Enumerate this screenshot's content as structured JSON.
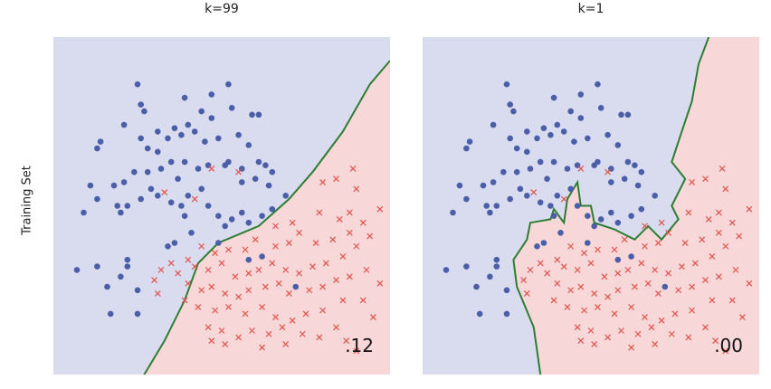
{
  "row_label": "Training Set",
  "colors": {
    "class_a_region": "#d9dcef",
    "class_b_region": "#f8d7d8",
    "boundary": "#2e7d32",
    "class_a_marker": "#4b5ea8",
    "class_b_marker": "#e0534b"
  },
  "chart_data": [
    {
      "type": "scatter",
      "title": "k=99",
      "error_label": ".12",
      "xlim": [
        0,
        1
      ],
      "ylim": [
        0,
        1
      ],
      "boundary": [
        [
          0.27,
          0
        ],
        [
          0.33,
          0.1
        ],
        [
          0.39,
          0.22
        ],
        [
          0.43,
          0.33
        ],
        [
          0.49,
          0.39
        ],
        [
          0.61,
          0.44
        ],
        [
          0.7,
          0.52
        ],
        [
          0.77,
          0.6
        ],
        [
          0.86,
          0.72
        ],
        [
          0.94,
          0.86
        ],
        [
          1.0,
          0.93
        ]
      ]
    },
    {
      "type": "scatter",
      "title": "k=1",
      "error_label": ".00",
      "xlim": [
        0,
        1
      ],
      "ylim": [
        0,
        1
      ],
      "boundary": [
        [
          0.35,
          0
        ],
        [
          0.33,
          0.14
        ],
        [
          0.28,
          0.26
        ],
        [
          0.27,
          0.34
        ],
        [
          0.31,
          0.4
        ],
        [
          0.32,
          0.45
        ],
        [
          0.38,
          0.46
        ],
        [
          0.39,
          0.49
        ],
        [
          0.42,
          0.45
        ],
        [
          0.43,
          0.52
        ],
        [
          0.46,
          0.57
        ],
        [
          0.47,
          0.5
        ],
        [
          0.5,
          0.5
        ],
        [
          0.51,
          0.45
        ],
        [
          0.57,
          0.43
        ],
        [
          0.63,
          0.4
        ],
        [
          0.67,
          0.44
        ],
        [
          0.71,
          0.4
        ],
        [
          0.76,
          0.46
        ],
        [
          0.74,
          0.5
        ],
        [
          0.78,
          0.58
        ],
        [
          0.74,
          0.63
        ],
        [
          0.77,
          0.72
        ],
        [
          0.8,
          0.81
        ],
        [
          0.82,
          0.92
        ],
        [
          0.85,
          1.0
        ]
      ]
    }
  ],
  "points": {
    "class_a": [
      [
        0.25,
        0.86
      ],
      [
        0.26,
        0.8
      ],
      [
        0.27,
        0.78
      ],
      [
        0.39,
        0.82
      ],
      [
        0.47,
        0.83
      ],
      [
        0.52,
        0.86
      ],
      [
        0.44,
        0.78
      ],
      [
        0.47,
        0.76
      ],
      [
        0.53,
        0.79
      ],
      [
        0.59,
        0.77
      ],
      [
        0.61,
        0.77
      ],
      [
        0.14,
        0.69
      ],
      [
        0.13,
        0.67
      ],
      [
        0.21,
        0.74
      ],
      [
        0.26,
        0.7
      ],
      [
        0.28,
        0.67
      ],
      [
        0.31,
        0.66
      ],
      [
        0.34,
        0.7
      ],
      [
        0.36,
        0.73
      ],
      [
        0.38,
        0.71
      ],
      [
        0.4,
        0.74
      ],
      [
        0.42,
        0.72
      ],
      [
        0.45,
        0.69
      ],
      [
        0.49,
        0.7
      ],
      [
        0.55,
        0.71
      ],
      [
        0.58,
        0.68
      ],
      [
        0.61,
        0.63
      ],
      [
        0.63,
        0.62
      ],
      [
        0.65,
        0.6
      ],
      [
        0.56,
        0.61
      ],
      [
        0.51,
        0.62
      ],
      [
        0.46,
        0.62
      ],
      [
        0.43,
        0.61
      ],
      [
        0.39,
        0.63
      ],
      [
        0.35,
        0.63
      ],
      [
        0.32,
        0.61
      ],
      [
        0.28,
        0.6
      ],
      [
        0.24,
        0.6
      ],
      [
        0.21,
        0.57
      ],
      [
        0.18,
        0.56
      ],
      [
        0.11,
        0.56
      ],
      [
        0.09,
        0.48
      ],
      [
        0.13,
        0.52
      ],
      [
        0.19,
        0.5
      ],
      [
        0.2,
        0.48
      ],
      [
        0.22,
        0.5
      ],
      [
        0.26,
        0.52
      ],
      [
        0.29,
        0.55
      ],
      [
        0.31,
        0.53
      ],
      [
        0.35,
        0.51
      ],
      [
        0.38,
        0.5
      ],
      [
        0.4,
        0.53
      ],
      [
        0.44,
        0.55
      ],
      [
        0.46,
        0.5
      ],
      [
        0.49,
        0.47
      ],
      [
        0.51,
        0.44
      ],
      [
        0.53,
        0.46
      ],
      [
        0.56,
        0.48
      ],
      [
        0.58,
        0.45
      ],
      [
        0.62,
        0.47
      ],
      [
        0.65,
        0.49
      ],
      [
        0.69,
        0.53
      ],
      [
        0.64,
        0.56
      ],
      [
        0.6,
        0.58
      ],
      [
        0.07,
        0.31
      ],
      [
        0.13,
        0.32
      ],
      [
        0.22,
        0.34
      ],
      [
        0.22,
        0.32
      ],
      [
        0.2,
        0.29
      ],
      [
        0.16,
        0.26
      ],
      [
        0.25,
        0.25
      ],
      [
        0.17,
        0.18
      ],
      [
        0.25,
        0.18
      ],
      [
        0.41,
        0.42
      ],
      [
        0.36,
        0.39
      ],
      [
        0.34,
        0.38
      ],
      [
        0.49,
        0.39
      ],
      [
        0.58,
        0.34
      ],
      [
        0.62,
        0.35
      ],
      [
        0.72,
        0.26
      ],
      [
        0.52,
        0.63
      ],
      [
        0.37,
        0.58
      ],
      [
        0.31,
        0.72
      ],
      [
        0.56,
        0.57
      ],
      [
        0.39,
        0.47
      ]
    ],
    "class_b": [
      [
        0.47,
        0.61
      ],
      [
        0.55,
        0.6
      ],
      [
        0.33,
        0.54
      ],
      [
        0.42,
        0.52
      ],
      [
        0.66,
        0.44
      ],
      [
        0.71,
        0.45
      ],
      [
        0.8,
        0.57
      ],
      [
        0.84,
        0.58
      ],
      [
        0.89,
        0.61
      ],
      [
        0.9,
        0.55
      ],
      [
        0.79,
        0.48
      ],
      [
        0.85,
        0.46
      ],
      [
        0.88,
        0.48
      ],
      [
        0.92,
        0.45
      ],
      [
        0.97,
        0.49
      ],
      [
        0.94,
        0.41
      ],
      [
        0.88,
        0.42
      ],
      [
        0.83,
        0.4
      ],
      [
        0.78,
        0.39
      ],
      [
        0.73,
        0.42
      ],
      [
        0.7,
        0.39
      ],
      [
        0.66,
        0.38
      ],
      [
        0.6,
        0.4
      ],
      [
        0.57,
        0.37
      ],
      [
        0.52,
        0.37
      ],
      [
        0.48,
        0.36
      ],
      [
        0.44,
        0.38
      ],
      [
        0.4,
        0.34
      ],
      [
        0.42,
        0.32
      ],
      [
        0.46,
        0.31
      ],
      [
        0.5,
        0.33
      ],
      [
        0.54,
        0.29
      ],
      [
        0.58,
        0.3
      ],
      [
        0.61,
        0.31
      ],
      [
        0.65,
        0.33
      ],
      [
        0.69,
        0.31
      ],
      [
        0.73,
        0.3
      ],
      [
        0.77,
        0.32
      ],
      [
        0.81,
        0.33
      ],
      [
        0.86,
        0.35
      ],
      [
        0.9,
        0.38
      ],
      [
        0.93,
        0.31
      ],
      [
        0.88,
        0.29
      ],
      [
        0.84,
        0.28
      ],
      [
        0.8,
        0.26
      ],
      [
        0.76,
        0.25
      ],
      [
        0.7,
        0.24
      ],
      [
        0.67,
        0.27
      ],
      [
        0.63,
        0.26
      ],
      [
        0.58,
        0.25
      ],
      [
        0.55,
        0.23
      ],
      [
        0.51,
        0.24
      ],
      [
        0.47,
        0.26
      ],
      [
        0.44,
        0.25
      ],
      [
        0.4,
        0.27
      ],
      [
        0.37,
        0.3
      ],
      [
        0.35,
        0.33
      ],
      [
        0.39,
        0.22
      ],
      [
        0.43,
        0.2
      ],
      [
        0.48,
        0.19
      ],
      [
        0.52,
        0.2
      ],
      [
        0.57,
        0.18
      ],
      [
        0.62,
        0.2
      ],
      [
        0.66,
        0.17
      ],
      [
        0.71,
        0.16
      ],
      [
        0.75,
        0.18
      ],
      [
        0.8,
        0.19
      ],
      [
        0.68,
        0.14
      ],
      [
        0.74,
        0.12
      ],
      [
        0.79,
        0.11
      ],
      [
        0.64,
        0.12
      ],
      [
        0.59,
        0.13
      ],
      [
        0.55,
        0.11
      ],
      [
        0.5,
        0.13
      ],
      [
        0.46,
        0.14
      ],
      [
        0.69,
        0.09
      ],
      [
        0.84,
        0.14
      ],
      [
        0.87,
        0.1
      ],
      [
        0.9,
        0.07
      ],
      [
        0.95,
        0.17
      ],
      [
        0.97,
        0.27
      ],
      [
        0.92,
        0.22
      ],
      [
        0.86,
        0.22
      ],
      [
        0.47,
        0.1
      ],
      [
        0.51,
        0.09
      ],
      [
        0.62,
        0.08
      ],
      [
        0.32,
        0.31
      ],
      [
        0.3,
        0.28
      ],
      [
        0.31,
        0.24
      ]
    ]
  }
}
